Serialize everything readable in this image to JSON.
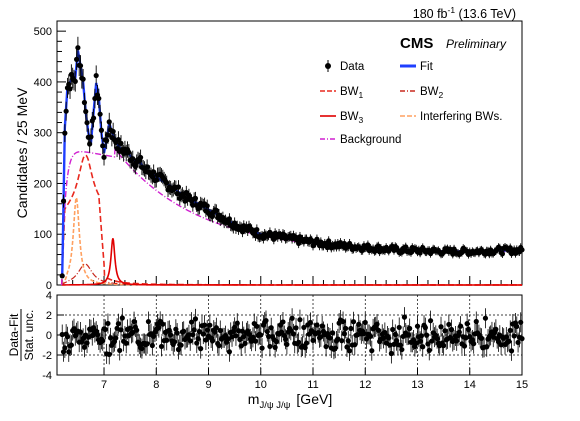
{
  "header": {
    "lumi_value": "180 fb",
    "lumi_exp": "-1",
    "lumi_energy": " (13.6 TeV)",
    "experiment": "CMS",
    "status": "Preliminary"
  },
  "colors": {
    "data": "#000000",
    "fit": "#1f3fff",
    "bw1": "#e8281e",
    "bw2": "#c8281e",
    "bw3": "#e00000",
    "interfering": "#ffa060",
    "background": "#d020d0"
  },
  "chart_data": [
    {
      "type": "scatter",
      "ylabel": "Candidates / 25 MeV",
      "xlim": [
        6.1,
        15.0
      ],
      "ylim": [
        0,
        520
      ],
      "y_ticks": [
        0,
        100,
        200,
        300,
        400,
        500
      ],
      "legend": {
        "placement": "top-right",
        "entries": [
          {
            "key": "data",
            "label": "Data",
            "style": "marker"
          },
          {
            "key": "fit",
            "label": "Fit",
            "style": "solid-thick"
          },
          {
            "key": "bw1",
            "label": "BW",
            "sub": "1",
            "style": "dashed"
          },
          {
            "key": "bw2",
            "label": "BW",
            "sub": "2",
            "style": "dashdot"
          },
          {
            "key": "bw3",
            "label": "BW",
            "sub": "3",
            "style": "solid"
          },
          {
            "key": "interfering",
            "label": "Interfering BWs.",
            "style": "dashed"
          },
          {
            "key": "background",
            "label": "Background",
            "style": "dashdot"
          }
        ]
      },
      "components": {
        "background": {
          "shape": "threshold-exponential",
          "threshold": 6.19,
          "peak_mass": 6.5,
          "peak_value": 265,
          "value_at_8": 218,
          "value_at_10": 102,
          "value_at_12": 67,
          "value_at_15": 64
        },
        "bw1": {
          "mass": 6.64,
          "width": 0.33,
          "peak_value": 258
        },
        "bw2": {
          "mass": 6.86,
          "width": 0.12,
          "peak_value": 262
        },
        "bw3": {
          "mass": 7.17,
          "width": 0.09,
          "peak_value": 92
        },
        "interfering": {
          "mass": 6.47,
          "width": 0.14,
          "peak_value": 172
        }
      },
      "data_points": [
        [
          6.2,
          18
        ],
        [
          6.25,
          310
        ],
        [
          6.3,
          390
        ],
        [
          6.35,
          400
        ],
        [
          6.4,
          405
        ],
        [
          6.45,
          408
        ],
        [
          6.5,
          462
        ],
        [
          6.55,
          432
        ],
        [
          6.6,
          400
        ],
        [
          6.65,
          340
        ],
        [
          6.7,
          300
        ],
        [
          6.75,
          280
        ],
        [
          6.8,
          340
        ],
        [
          6.85,
          398
        ],
        [
          6.9,
          370
        ],
        [
          6.95,
          300
        ],
        [
          7.0,
          260
        ],
        [
          7.05,
          286
        ],
        [
          7.1,
          320
        ],
        [
          7.15,
          300
        ],
        [
          7.2,
          290
        ],
        [
          7.3,
          270
        ],
        [
          7.4,
          265
        ],
        [
          7.5,
          255
        ],
        [
          7.6,
          245
        ],
        [
          7.7,
          240
        ],
        [
          7.8,
          225
        ],
        [
          7.9,
          222
        ],
        [
          8.0,
          212
        ],
        [
          8.2,
          200
        ],
        [
          8.4,
          185
        ],
        [
          8.6,
          170
        ],
        [
          8.8,
          160
        ],
        [
          9.0,
          148
        ],
        [
          9.2,
          138
        ],
        [
          9.4,
          125
        ],
        [
          9.6,
          115
        ],
        [
          9.8,
          108
        ],
        [
          10.0,
          100
        ],
        [
          10.5,
          92
        ],
        [
          11.0,
          84
        ],
        [
          11.5,
          78
        ],
        [
          12.0,
          74
        ],
        [
          12.5,
          70
        ],
        [
          13.0,
          68
        ],
        [
          13.5,
          66
        ],
        [
          14.0,
          66
        ],
        [
          14.5,
          68
        ],
        [
          15.0,
          68
        ]
      ]
    },
    {
      "type": "scatter",
      "ylabel": "Data-Fit / Stat. unc.",
      "xlabel": "m",
      "xlabel_sub": "J/ψ J/ψ",
      "xlabel_unit": "[GeV]",
      "xlim": [
        6.1,
        15.0
      ],
      "ylim": [
        -4,
        4
      ],
      "x_ticks": [
        7,
        8,
        9,
        10,
        11,
        12,
        13,
        14,
        15
      ],
      "y_ticks": [
        -4,
        -2,
        0,
        2,
        4
      ],
      "grid": true,
      "pulls_span": [
        -2.6,
        2.9
      ]
    }
  ]
}
